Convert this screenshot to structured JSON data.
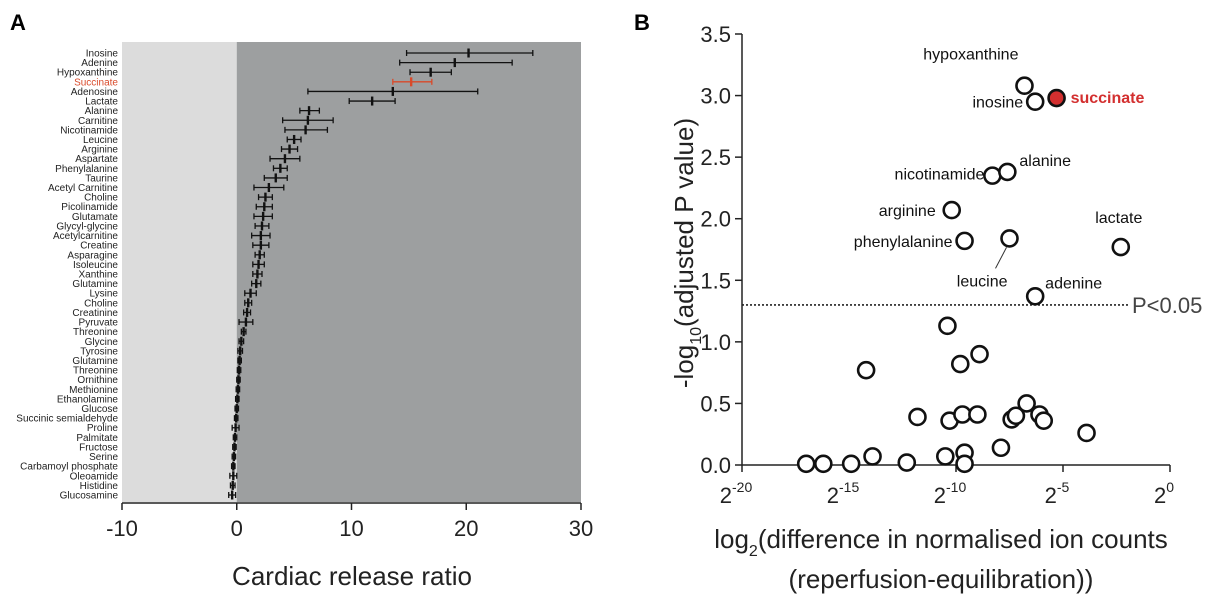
{
  "chart_data": [
    {
      "panel_label": "A",
      "type": "scatter",
      "orientation": "horizontal-errorbar",
      "xlabel": "Cardiac release ratio",
      "xlim": [
        -10,
        30
      ],
      "xticks": [
        -10,
        0,
        10,
        20,
        30
      ],
      "highlight": "Succinate",
      "highlight_color": "#d94a2a",
      "shade_colors": {
        "negative": "#dcdcdc",
        "positive": "#9d9fa0"
      },
      "points": [
        {
          "name": "Inosine",
          "value": 20.2,
          "lo": 14.8,
          "hi": 25.8
        },
        {
          "name": "Adenine",
          "value": 19.0,
          "lo": 14.2,
          "hi": 24.0
        },
        {
          "name": "Hypoxanthine",
          "value": 16.9,
          "lo": 15.1,
          "hi": 18.7
        },
        {
          "name": "Succinate",
          "value": 15.2,
          "lo": 13.6,
          "hi": 17.0
        },
        {
          "name": "Adenosine",
          "value": 13.6,
          "lo": 6.2,
          "hi": 21.0
        },
        {
          "name": "Lactate",
          "value": 11.8,
          "lo": 9.8,
          "hi": 13.8
        },
        {
          "name": "Alanine",
          "value": 6.3,
          "lo": 5.5,
          "hi": 7.2
        },
        {
          "name": "Carnitine",
          "value": 6.2,
          "lo": 4.0,
          "hi": 8.4
        },
        {
          "name": "Nicotinamide",
          "value": 6.0,
          "lo": 4.2,
          "hi": 7.9
        },
        {
          "name": "Leucine",
          "value": 5.0,
          "lo": 4.4,
          "hi": 5.6
        },
        {
          "name": "Arginine",
          "value": 4.6,
          "lo": 3.9,
          "hi": 5.3
        },
        {
          "name": "Aspartate",
          "value": 4.2,
          "lo": 2.9,
          "hi": 5.5
        },
        {
          "name": "Phenylalanine",
          "value": 3.8,
          "lo": 3.2,
          "hi": 4.4
        },
        {
          "name": "Taurine",
          "value": 3.4,
          "lo": 2.4,
          "hi": 4.4
        },
        {
          "name": "Acetyl Carnitine",
          "value": 2.8,
          "lo": 1.5,
          "hi": 4.1
        },
        {
          "name": "Choline",
          "value": 2.5,
          "lo": 1.9,
          "hi": 3.1
        },
        {
          "name": "Picolinamide",
          "value": 2.4,
          "lo": 1.7,
          "hi": 3.1
        },
        {
          "name": "Glutamate",
          "value": 2.3,
          "lo": 1.5,
          "hi": 3.1
        },
        {
          "name": "Glycyl-glycine",
          "value": 2.2,
          "lo": 1.6,
          "hi": 2.8
        },
        {
          "name": "Acetylcarnitine",
          "value": 2.1,
          "lo": 1.3,
          "hi": 2.9
        },
        {
          "name": "Creatine",
          "value": 2.1,
          "lo": 1.4,
          "hi": 2.8
        },
        {
          "name": "Asparagine",
          "value": 2.0,
          "lo": 1.6,
          "hi": 2.4
        },
        {
          "name": "Isoleucine",
          "value": 1.9,
          "lo": 1.4,
          "hi": 2.4
        },
        {
          "name": "Xanthine",
          "value": 1.8,
          "lo": 1.4,
          "hi": 2.2
        },
        {
          "name": "Glutamine",
          "value": 1.7,
          "lo": 1.3,
          "hi": 2.1
        },
        {
          "name": "Lysine",
          "value": 1.2,
          "lo": 0.7,
          "hi": 1.7
        },
        {
          "name": "Choline",
          "value": 1.0,
          "lo": 0.7,
          "hi": 1.3
        },
        {
          "name": "Creatinine",
          "value": 0.9,
          "lo": 0.6,
          "hi": 1.2
        },
        {
          "name": "Pyruvate",
          "value": 0.8,
          "lo": 0.2,
          "hi": 1.4
        },
        {
          "name": "Threonine",
          "value": 0.6,
          "lo": 0.4,
          "hi": 0.8
        },
        {
          "name": "Glycine",
          "value": 0.4,
          "lo": 0.2,
          "hi": 0.6
        },
        {
          "name": "Tyrosine",
          "value": 0.3,
          "lo": 0.1,
          "hi": 0.5
        },
        {
          "name": "Glutamine",
          "value": 0.25,
          "lo": 0.1,
          "hi": 0.4
        },
        {
          "name": "Threonine",
          "value": 0.2,
          "lo": 0.05,
          "hi": 0.35
        },
        {
          "name": "Ornithine",
          "value": 0.15,
          "lo": 0.0,
          "hi": 0.3
        },
        {
          "name": "Methionine",
          "value": 0.1,
          "lo": -0.05,
          "hi": 0.25
        },
        {
          "name": "Ethanolamine",
          "value": 0.05,
          "lo": -0.1,
          "hi": 0.2
        },
        {
          "name": "Glucose",
          "value": 0.0,
          "lo": -0.15,
          "hi": 0.15
        },
        {
          "name": "Succinic semialdehyde",
          "value": -0.05,
          "lo": -0.2,
          "hi": 0.1
        },
        {
          "name": "Proline",
          "value": -0.1,
          "lo": -0.4,
          "hi": 0.2
        },
        {
          "name": "Palmitate",
          "value": -0.15,
          "lo": -0.3,
          "hi": 0.0
        },
        {
          "name": "Fructose",
          "value": -0.2,
          "lo": -0.35,
          "hi": -0.05
        },
        {
          "name": "Serine",
          "value": -0.25,
          "lo": -0.4,
          "hi": -0.1
        },
        {
          "name": "Carbamoyl phosphate",
          "value": -0.3,
          "lo": -0.45,
          "hi": -0.15
        },
        {
          "name": "Oleoamide",
          "value": -0.3,
          "lo": -0.6,
          "hi": 0.0
        },
        {
          "name": "Histidine",
          "value": -0.35,
          "lo": -0.55,
          "hi": -0.15
        },
        {
          "name": "Glucosamine",
          "value": -0.4,
          "lo": -0.7,
          "hi": -0.1
        }
      ]
    },
    {
      "panel_label": "B",
      "type": "scatter",
      "xlabel_prefix": "log",
      "xlabel_sub": "2",
      "xlabel_main": "(difference in normalised ion counts",
      "xlabel_line2": "(reperfusion-equilibration))",
      "ylabel_prefix": "-log",
      "ylabel_sub": "10",
      "ylabel_main": "(adjusted  P value)",
      "xscale": "log2",
      "xlim_exponent": [
        -20,
        0
      ],
      "xticks_base": "2",
      "xticks_exponents": [
        "-20",
        "-15",
        "-10",
        "-5",
        "0"
      ],
      "ylim": [
        0,
        3.5
      ],
      "yticks": [
        "0.0",
        "0.5",
        "1.0",
        "1.5",
        "2.0",
        "2.5",
        "3.0",
        "3.5"
      ],
      "threshold": {
        "y": 1.3,
        "label": "P<0.05"
      },
      "highlight_color": "#d32f2f",
      "labeled_points": [
        {
          "name": "hypoxanthine",
          "exp": -6.8,
          "y": 3.08
        },
        {
          "name": "inosine",
          "exp": -6.3,
          "y": 2.95
        },
        {
          "name": "succinate",
          "exp": -5.3,
          "y": 2.98,
          "highlight": true
        },
        {
          "name": "nicotinamide",
          "exp": -8.3,
          "y": 2.35
        },
        {
          "name": "alanine",
          "exp": -7.6,
          "y": 2.38
        },
        {
          "name": "arginine",
          "exp": -10.2,
          "y": 2.07
        },
        {
          "name": "phenylalanine",
          "exp": -9.6,
          "y": 1.82
        },
        {
          "name": "leucine",
          "exp": -7.5,
          "y": 1.84
        },
        {
          "name": "lactate",
          "exp": -2.3,
          "y": 1.77
        },
        {
          "name": "adenine",
          "exp": -6.3,
          "y": 1.37
        }
      ],
      "other_points": [
        {
          "exp": -10.4,
          "y": 1.13
        },
        {
          "exp": -8.9,
          "y": 0.9
        },
        {
          "exp": -9.8,
          "y": 0.82
        },
        {
          "exp": -14.2,
          "y": 0.77
        },
        {
          "exp": -11.8,
          "y": 0.39
        },
        {
          "exp": -10.3,
          "y": 0.36
        },
        {
          "exp": -9.7,
          "y": 0.41
        },
        {
          "exp": -9.0,
          "y": 0.41
        },
        {
          "exp": -6.7,
          "y": 0.5
        },
        {
          "exp": -7.4,
          "y": 0.37
        },
        {
          "exp": -7.2,
          "y": 0.4
        },
        {
          "exp": -6.1,
          "y": 0.41
        },
        {
          "exp": -5.9,
          "y": 0.36
        },
        {
          "exp": -3.9,
          "y": 0.26
        },
        {
          "exp": -7.9,
          "y": 0.14
        },
        {
          "exp": -10.5,
          "y": 0.07
        },
        {
          "exp": -9.6,
          "y": 0.1
        },
        {
          "exp": -9.6,
          "y": 0.01
        },
        {
          "exp": -12.3,
          "y": 0.02
        },
        {
          "exp": -13.9,
          "y": 0.07
        },
        {
          "exp": -14.9,
          "y": 0.01
        },
        {
          "exp": -16.2,
          "y": 0.01
        },
        {
          "exp": -17.0,
          "y": 0.01
        }
      ]
    }
  ]
}
